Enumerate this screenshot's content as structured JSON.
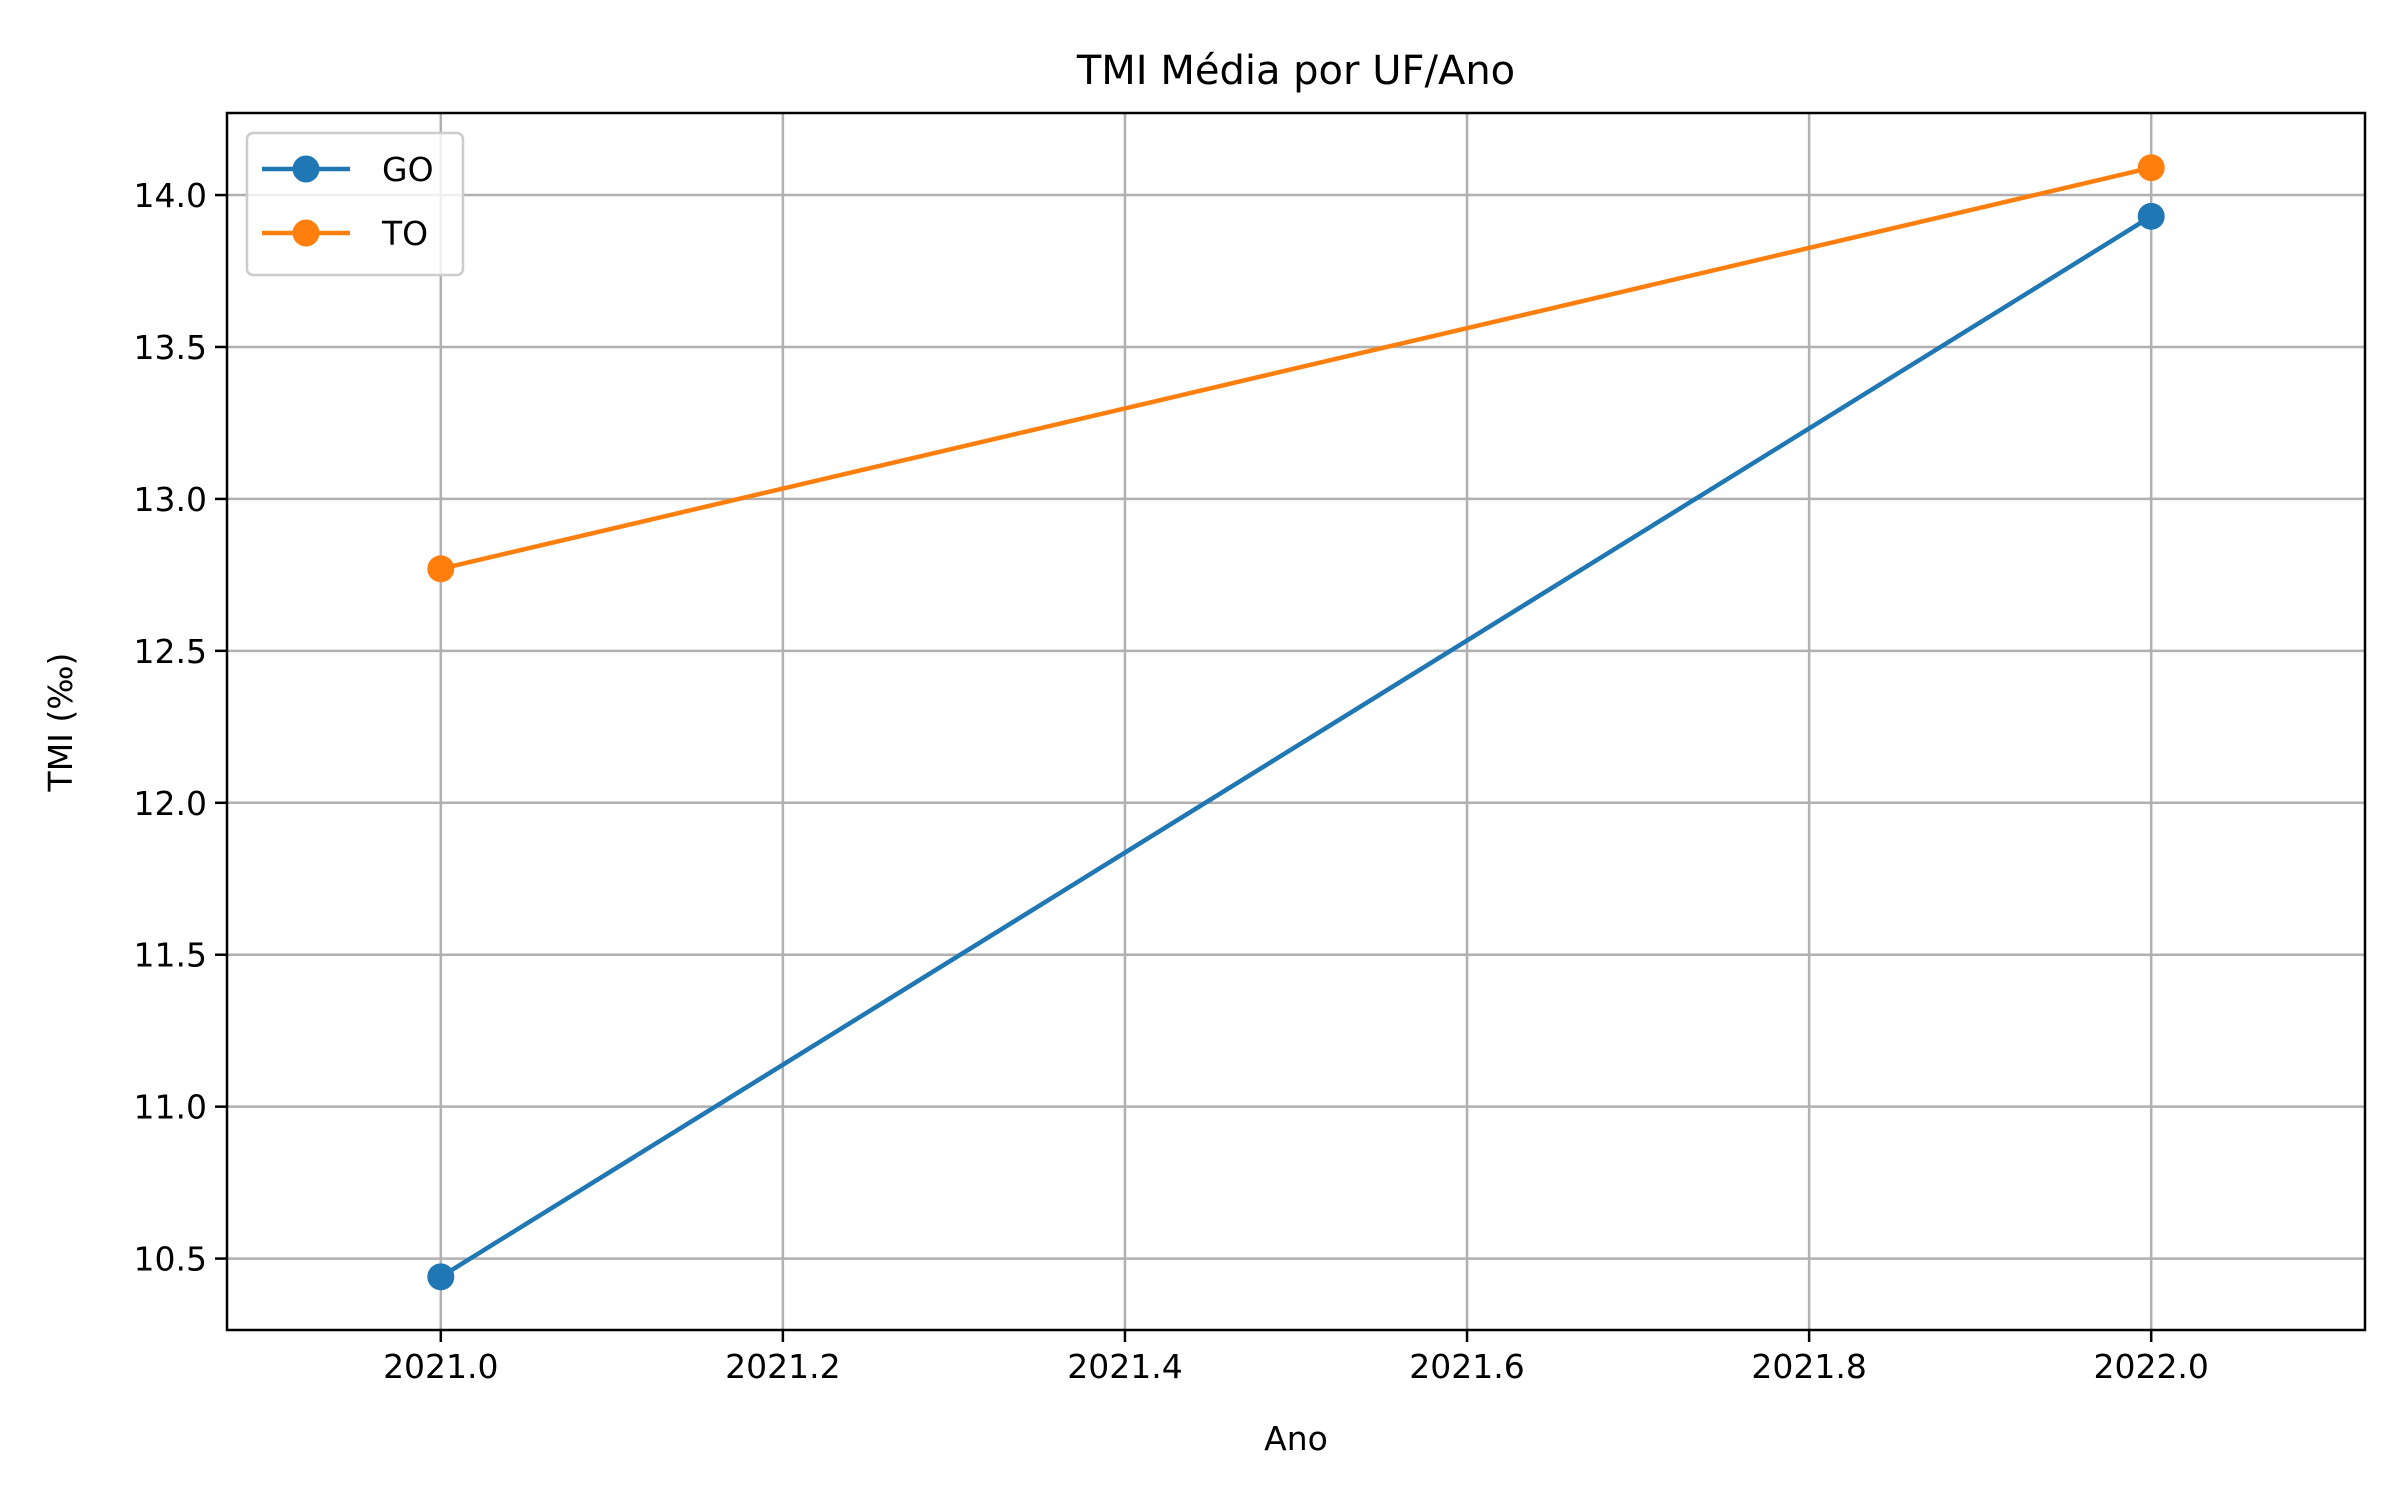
{
  "chart_data": {
    "type": "line",
    "title": "TMI Média por UF/Ano",
    "xlabel": "Ano",
    "ylabel": "TMI (‰)",
    "xlim": [
      2020.875,
      2022.125
    ],
    "ylim": [
      10.265,
      14.27
    ],
    "xticks": [
      2021.0,
      2021.2,
      2021.4,
      2021.6,
      2021.8,
      2022.0
    ],
    "xtick_labels": [
      "2021.0",
      "2021.2",
      "2021.4",
      "2021.6",
      "2021.8",
      "2022.0"
    ],
    "yticks": [
      10.5,
      11.0,
      11.5,
      12.0,
      12.5,
      13.0,
      13.5,
      14.0
    ],
    "ytick_labels": [
      "10.5",
      "11.0",
      "11.5",
      "12.0",
      "12.5",
      "13.0",
      "13.5",
      "14.0"
    ],
    "grid": true,
    "legend_position": "top-left",
    "series": [
      {
        "name": "GO",
        "color": "#1f77b4",
        "x": [
          2021,
          2022
        ],
        "y": [
          10.44,
          13.93
        ]
      },
      {
        "name": "TO",
        "color": "#ff7f0e",
        "x": [
          2021,
          2022
        ],
        "y": [
          12.77,
          14.09
        ]
      }
    ]
  }
}
